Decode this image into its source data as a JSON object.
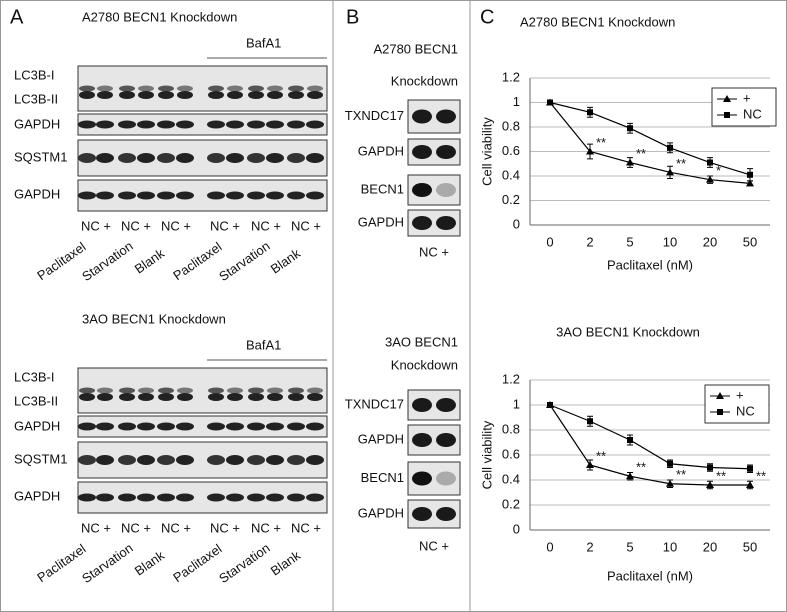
{
  "panels": {
    "A": {
      "label": "A",
      "blocks": [
        {
          "title": "A2780 BECN1 Knockdown",
          "treatment": "BafA1",
          "rows": [
            "LC3B-I",
            "LC3B-II",
            "GAPDH",
            "SQSTM1",
            "GAPDH"
          ],
          "lanes": [
            "NC +",
            "NC +",
            "NC +",
            "NC +",
            "NC +",
            "NC +"
          ],
          "conditions": [
            "Paclitaxel",
            "Starvation",
            "Blank",
            "Paclitaxel",
            "Starvation",
            "Blank"
          ]
        },
        {
          "title": "3AO BECN1 Knockdown",
          "treatment": "BafA1",
          "rows": [
            "LC3B-I",
            "LC3B-II",
            "GAPDH",
            "SQSTM1",
            "GAPDH"
          ],
          "lanes": [
            "NC +",
            "NC +",
            "NC +",
            "NC +",
            "NC +",
            "NC +"
          ],
          "conditions": [
            "Paclitaxel",
            "Starvation",
            "Blank",
            "Paclitaxel",
            "Starvation",
            "Blank"
          ]
        }
      ]
    },
    "B": {
      "label": "B",
      "blocks": [
        {
          "title": [
            "A2780 BECN1",
            "Knockdown"
          ],
          "rows": [
            "TXNDC17",
            "GAPDH",
            "BECN1",
            "GAPDH"
          ],
          "lanes": "NC +"
        },
        {
          "title": [
            "3AO BECN1",
            "Knockdown"
          ],
          "rows": [
            "TXNDC17",
            "GAPDH",
            "BECN1",
            "GAPDH"
          ],
          "lanes": "NC +"
        }
      ]
    },
    "C": {
      "label": "C"
    }
  },
  "chart_data": [
    {
      "type": "line",
      "title": "A2780 BECN1 Knockdown",
      "x_label": "Paclitaxel (nM)",
      "y_label": "Cell viability",
      "categories": [
        "0",
        "2",
        "5",
        "10",
        "20",
        "50"
      ],
      "series": [
        {
          "name": "+",
          "color": "#000000",
          "marker": "triangle",
          "values": [
            1,
            0.6,
            0.51,
            0.43,
            0.37,
            0.34
          ],
          "errors": [
            0,
            0.06,
            0.04,
            0.05,
            0.03,
            0.02
          ]
        },
        {
          "name": "NC",
          "color": "#000000",
          "marker": "square",
          "values": [
            1,
            0.92,
            0.79,
            0.63,
            0.51,
            0.41
          ],
          "errors": [
            0,
            0.04,
            0.04,
            0.04,
            0.04,
            0.05
          ]
        }
      ],
      "significance": [
        null,
        "**",
        "**",
        "**",
        "*",
        null
      ],
      "ylim": [
        0,
        1.2
      ],
      "yticks": [
        0,
        0.2,
        0.4,
        0.6,
        0.8,
        1,
        1.2
      ],
      "grid": true,
      "legend": "upper right"
    },
    {
      "type": "line",
      "title": "3AO BECN1 Knockdown",
      "x_label": "Paclitaxel (nM)",
      "y_label": "Cell viability",
      "categories": [
        "0",
        "2",
        "5",
        "10",
        "20",
        "50"
      ],
      "series": [
        {
          "name": "+",
          "color": "#000000",
          "marker": "triangle",
          "values": [
            1,
            0.52,
            0.43,
            0.37,
            0.36,
            0.36
          ],
          "errors": [
            0,
            0.04,
            0.03,
            0.03,
            0.03,
            0.03
          ]
        },
        {
          "name": "NC",
          "color": "#000000",
          "marker": "square",
          "values": [
            1,
            0.87,
            0.72,
            0.53,
            0.5,
            0.49
          ],
          "errors": [
            0,
            0.04,
            0.04,
            0.03,
            0.03,
            0.03
          ]
        }
      ],
      "significance": [
        null,
        "**",
        "**",
        "**",
        "**",
        "**"
      ],
      "ylim": [
        0,
        1.2
      ],
      "yticks": [
        0,
        0.2,
        0.4,
        0.6,
        0.8,
        1,
        1.2
      ],
      "grid": true,
      "legend": "upper right"
    }
  ]
}
